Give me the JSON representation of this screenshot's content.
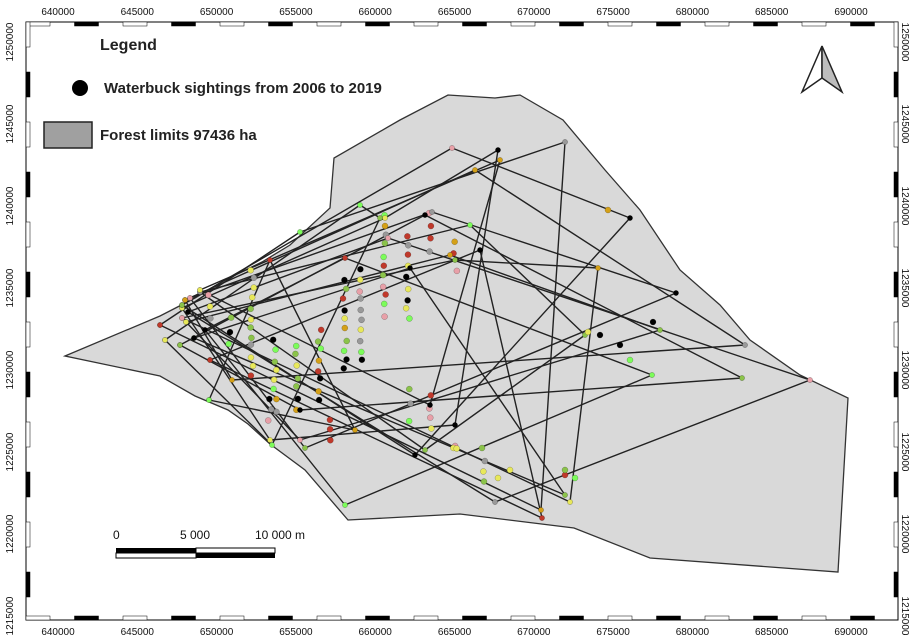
{
  "legend": {
    "title": "Legend",
    "items": [
      {
        "label": "Waterbuck sightings from 2006 to 2019",
        "symbol": "black-dot"
      },
      {
        "label": "Forest limits 97436 ha",
        "symbol": "grey-rectangle"
      }
    ]
  },
  "scale_bar": {
    "labels": [
      "0",
      "5 000",
      "10 000 m"
    ]
  },
  "north_arrow": {
    "symbol": "north-arrow-icon"
  },
  "axes": {
    "x_ticks": [
      "640000",
      "645000",
      "650000",
      "655000",
      "660000",
      "665000",
      "670000",
      "675000",
      "680000",
      "685000",
      "690000"
    ],
    "y_ticks": [
      "1250000",
      "1245000",
      "1240000",
      "1235000",
      "1230000",
      "1225000",
      "1220000",
      "1215000"
    ]
  },
  "colors": {
    "forest_fill": "#d9d9d9",
    "forest_outline": "#333333",
    "track_line": "#222222",
    "dot_colors": [
      "#000000",
      "#c0392b",
      "#8bc34a",
      "#e8e85a",
      "#e8a0a8",
      "#7cfc5a",
      "#d4a017",
      "#999999"
    ]
  }
}
